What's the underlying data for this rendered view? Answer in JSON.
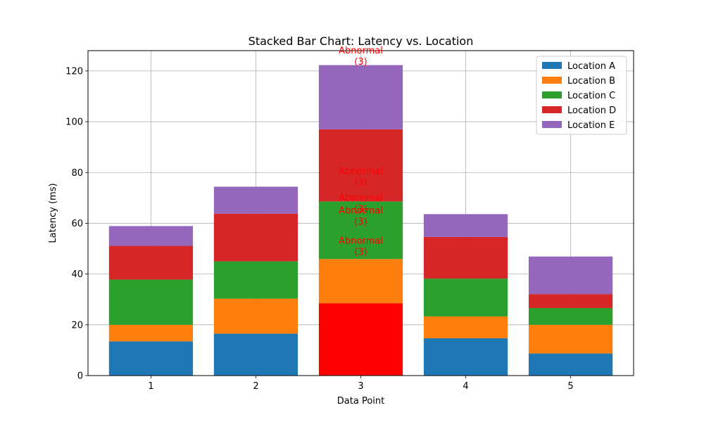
{
  "chart_data": {
    "type": "bar",
    "stacked": true,
    "title": "Stacked Bar Chart: Latency vs. Location",
    "xlabel": "Data Point",
    "ylabel": "Latency (ms)",
    "categories": [
      "1",
      "2",
      "3",
      "4",
      "5"
    ],
    "ylim": [
      0,
      128
    ],
    "yticks": [
      0,
      20,
      40,
      60,
      80,
      100,
      120
    ],
    "grid": true,
    "legend_position": "top-right",
    "series": [
      {
        "name": "Location A",
        "color": "#1f77b4",
        "values": [
          13.5,
          16.5,
          28.5,
          14.7,
          8.7
        ]
      },
      {
        "name": "Location B",
        "color": "#ff7f0e",
        "values": [
          6.5,
          13.8,
          17.4,
          8.6,
          11.3
        ]
      },
      {
        "name": "Location C",
        "color": "#2ca02c",
        "values": [
          17.8,
          14.7,
          22.7,
          14.9,
          6.6
        ]
      },
      {
        "name": "Location D",
        "color": "#d62728",
        "values": [
          13.3,
          18.8,
          28.4,
          16.4,
          5.5
        ]
      },
      {
        "name": "Location E",
        "color": "#9467bd",
        "values": [
          7.8,
          10.6,
          25.3,
          9.0,
          14.8
        ]
      }
    ],
    "abnormal_color": "#ff0000",
    "annotations": [
      {
        "category": "3",
        "label": "Abnormal\n(3)",
        "y_top": 128.0
      },
      {
        "category": "3",
        "label": "Abnormal\n(3)",
        "y_top": 80.5
      },
      {
        "category": "3",
        "label": "Abnormal\n(3)",
        "y_top": 70.0
      },
      {
        "category": "3",
        "label": "Abnormal\n(3)",
        "y_top": 65.0
      },
      {
        "category": "3",
        "label": "Abnormal\n(3)",
        "y_top": 53.0
      }
    ],
    "abnormal_bars": [
      {
        "category": "3",
        "series": "Location A"
      }
    ]
  }
}
